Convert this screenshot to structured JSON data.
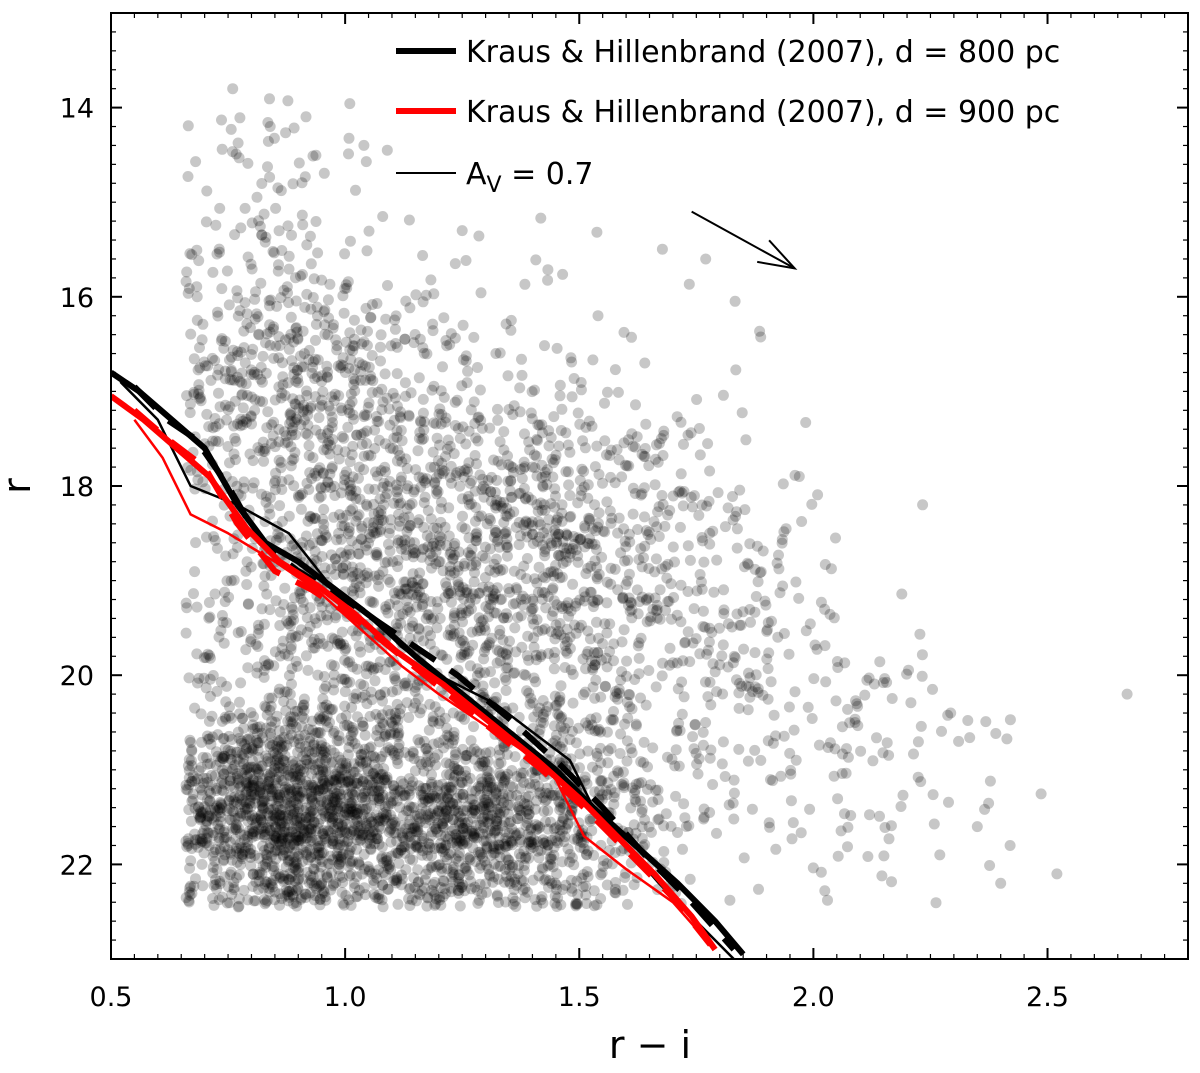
{
  "chart_data": {
    "type": "scatter",
    "title": "",
    "xlabel": "r − i",
    "ylabel": "r",
    "xlim": [
      0.5,
      2.8
    ],
    "ylim": [
      23.0,
      13.0
    ],
    "y_inverted": true,
    "x_ticks": [
      0.5,
      1.0,
      1.5,
      2.0,
      2.5
    ],
    "x_tick_labels": [
      "0.5",
      "1.0",
      "1.5",
      "2.0",
      "2.5"
    ],
    "y_ticks": [
      14,
      16,
      18,
      20,
      22
    ],
    "y_tick_labels": [
      "14",
      "16",
      "18",
      "20",
      "22"
    ],
    "grid": false,
    "legend_position": "top-right",
    "legend": [
      {
        "label": "Kraus & Hillenbrand (2007), d = 800 pc",
        "color": "#000000",
        "style": "thick-solid"
      },
      {
        "label": "Kraus & Hillenbrand (2007), d = 900 pc",
        "color": "#ff0000",
        "style": "thick-solid"
      },
      {
        "label": "A",
        "label_sub": "V",
        "label_suffix": " = 0.7",
        "color": "#000000",
        "style": "thin-solid"
      }
    ],
    "scatter": {
      "name": "stars",
      "color": "#000000",
      "opacity": 0.22,
      "clusters": [
        {
          "cx": 0.85,
          "cy": 21.4,
          "sx": 0.16,
          "sy": 0.6,
          "n": 1500
        },
        {
          "cx": 1.3,
          "cy": 21.5,
          "sx": 0.2,
          "sy": 0.6,
          "n": 1200
        },
        {
          "cx": 1.1,
          "cy": 18.9,
          "sx": 0.25,
          "sy": 1.0,
          "n": 1200
        },
        {
          "cx": 0.9,
          "cy": 16.9,
          "sx": 0.18,
          "sy": 0.7,
          "n": 500
        },
        {
          "cx": 1.45,
          "cy": 18.7,
          "sx": 0.22,
          "sy": 1.1,
          "n": 600
        },
        {
          "cx": 1.8,
          "cy": 20.0,
          "sx": 0.18,
          "sy": 0.9,
          "n": 250
        },
        {
          "cx": 0.82,
          "cy": 15.2,
          "sx": 0.12,
          "sy": 0.8,
          "n": 90
        },
        {
          "cx": 2.15,
          "cy": 21.0,
          "sx": 0.15,
          "sy": 0.7,
          "n": 70
        }
      ],
      "extra_points": [
        {
          "x": 2.67,
          "y": 20.2
        },
        {
          "x": 2.52,
          "y": 22.1
        },
        {
          "x": 2.4,
          "y": 22.2
        },
        {
          "x": 2.42,
          "y": 21.8
        },
        {
          "x": 2.35,
          "y": 21.6
        },
        {
          "x": 1.97,
          "y": 17.9
        },
        {
          "x": 1.77,
          "y": 15.6
        },
        {
          "x": 0.76,
          "y": 13.8
        },
        {
          "x": 1.04,
          "y": 14.4
        },
        {
          "x": 1.09,
          "y": 14.45
        },
        {
          "x": 0.84,
          "y": 14.2
        },
        {
          "x": 1.25,
          "y": 15.3
        },
        {
          "x": 1.54,
          "y": 16.2
        },
        {
          "x": 1.64,
          "y": 16.7
        },
        {
          "x": 2.31,
          "y": 20.7
        },
        {
          "x": 2.27,
          "y": 21.9
        }
      ]
    },
    "series": [
      {
        "name": "800 pc solid",
        "color": "#000000",
        "width": 6,
        "dash": "none",
        "x": [
          0.5,
          0.56,
          0.63,
          0.7,
          0.77,
          0.83,
          0.9,
          0.98,
          1.06,
          1.15,
          1.25,
          1.35,
          1.45,
          1.53,
          1.62,
          1.71,
          1.79,
          1.85
        ],
        "y": [
          16.8,
          17.0,
          17.3,
          17.6,
          18.2,
          18.6,
          18.8,
          19.1,
          19.4,
          19.8,
          20.2,
          20.6,
          21.0,
          21.4,
          21.8,
          22.2,
          22.6,
          22.95
        ]
      },
      {
        "name": "800 pc dashed",
        "color": "#000000",
        "width": 6,
        "dash": "30,18",
        "x": [
          0.55,
          0.62,
          0.68,
          0.75,
          0.82,
          0.9,
          1.0,
          1.12,
          1.24,
          1.36,
          1.46,
          1.55,
          1.64,
          1.74,
          1.83
        ],
        "y": [
          16.95,
          17.3,
          17.5,
          18.0,
          18.6,
          18.9,
          19.2,
          19.6,
          20.0,
          20.5,
          20.95,
          21.4,
          21.9,
          22.4,
          22.9
        ]
      },
      {
        "name": "800 pc thin",
        "color": "#000000",
        "width": 2.5,
        "dash": "none",
        "x": [
          0.52,
          0.6,
          0.67,
          0.77,
          0.88,
          0.96,
          1.04,
          1.12,
          1.2,
          1.32,
          1.4,
          1.48,
          1.53,
          1.6,
          1.67,
          1.75,
          1.83
        ],
        "y": [
          16.9,
          17.3,
          18.0,
          18.2,
          18.5,
          19.0,
          19.3,
          19.7,
          20.0,
          20.3,
          20.6,
          20.9,
          21.4,
          21.8,
          22.2,
          22.6,
          23.0
        ]
      },
      {
        "name": "900 pc solid",
        "color": "#ff0000",
        "width": 6,
        "dash": "none",
        "x": [
          0.5,
          0.57,
          0.64,
          0.71,
          0.79,
          0.86,
          0.94,
          1.02,
          1.11,
          1.21,
          1.31,
          1.41,
          1.5,
          1.58,
          1.66,
          1.74,
          1.79
        ],
        "y": [
          17.05,
          17.3,
          17.6,
          17.9,
          18.45,
          18.8,
          19.05,
          19.35,
          19.75,
          20.1,
          20.5,
          20.9,
          21.3,
          21.7,
          22.1,
          22.55,
          22.9
        ]
      },
      {
        "name": "900 pc dashed",
        "color": "#ff0000",
        "width": 6,
        "dash": "30,18",
        "x": [
          0.55,
          0.62,
          0.7,
          0.77,
          0.85,
          0.93,
          1.02,
          1.12,
          1.22,
          1.32,
          1.42,
          1.51,
          1.6,
          1.7,
          1.78
        ],
        "y": [
          17.2,
          17.5,
          17.8,
          18.4,
          18.9,
          19.1,
          19.4,
          19.8,
          20.2,
          20.6,
          21.0,
          21.4,
          21.85,
          22.35,
          22.85
        ]
      },
      {
        "name": "900 pc thin",
        "color": "#ff0000",
        "width": 2.5,
        "dash": "none",
        "x": [
          0.55,
          0.61,
          0.67,
          0.75,
          0.85,
          0.94,
          1.03,
          1.12,
          1.2,
          1.29,
          1.38,
          1.45,
          1.51,
          1.6,
          1.7,
          1.78
        ],
        "y": [
          17.3,
          17.7,
          18.3,
          18.5,
          18.8,
          19.1,
          19.5,
          19.9,
          20.2,
          20.5,
          20.8,
          21.1,
          21.7,
          22.05,
          22.4,
          22.85
        ]
      }
    ],
    "annotations": [
      {
        "type": "arrow",
        "label": "A_V = 0.7 reddening vector",
        "x1": 1.74,
        "y1": 15.1,
        "x2": 1.96,
        "y2": 15.7,
        "color": "#000000"
      }
    ]
  }
}
